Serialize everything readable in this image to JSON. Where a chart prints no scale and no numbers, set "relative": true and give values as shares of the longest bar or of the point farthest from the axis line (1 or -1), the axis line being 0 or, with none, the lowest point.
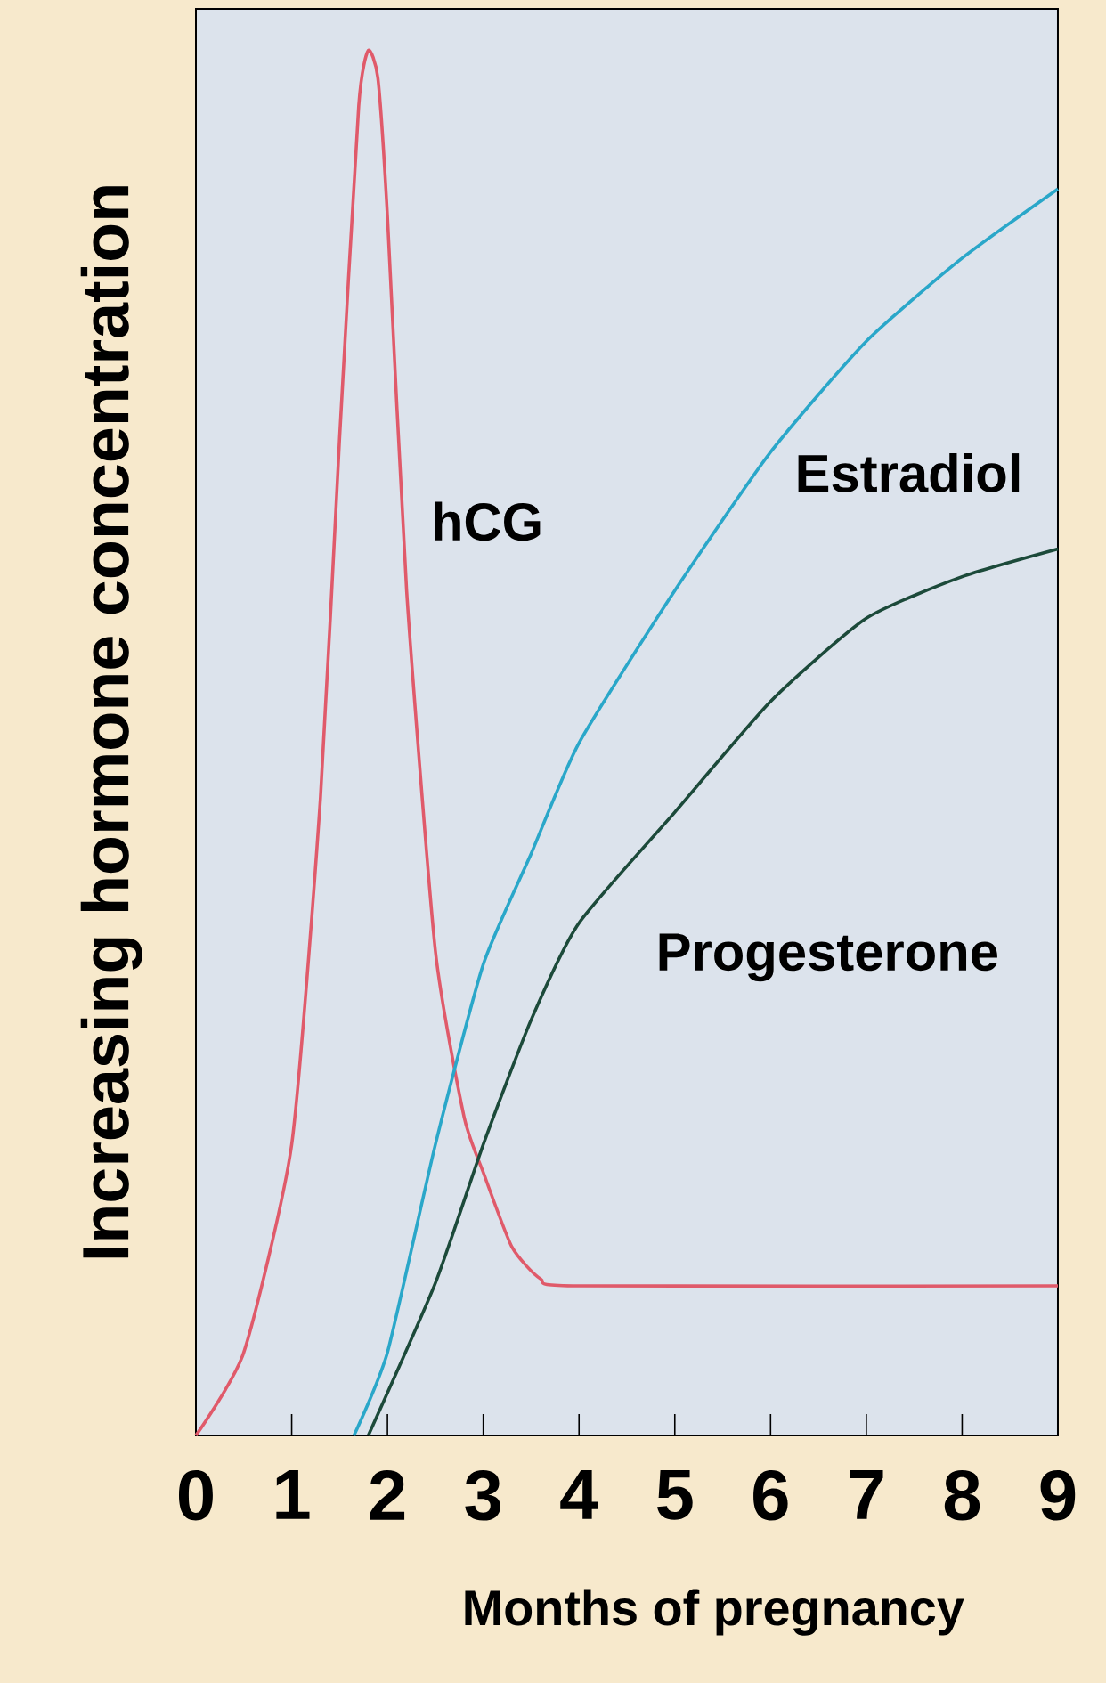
{
  "chart_data": {
    "type": "line",
    "relative": true,
    "xlabel": "Months of pregnancy",
    "ylabel": "Increasing hormone concentration",
    "xlim": [
      0,
      9
    ],
    "xticks": [
      0,
      1,
      2,
      3,
      4,
      5,
      6,
      7,
      8,
      9
    ],
    "series": [
      {
        "name": "hCG",
        "color": "#e05a6a",
        "x": [
          0,
          0.5,
          1,
          1.3,
          1.5,
          1.7,
          1.8,
          1.9,
          2,
          2.2,
          2.5,
          2.8,
          3,
          3.3,
          3.6,
          4,
          9
        ],
        "values": [
          0,
          0.06,
          0.21,
          0.46,
          0.72,
          0.96,
          1,
          0.98,
          0.88,
          0.61,
          0.35,
          0.23,
          0.19,
          0.136,
          0.113,
          0.108,
          0.108
        ]
      },
      {
        "name": "Estradiol",
        "color": "#2aa7c9",
        "x": [
          1.65,
          2,
          2.5,
          3,
          3.5,
          4,
          5,
          6,
          7,
          8,
          9
        ],
        "values": [
          0,
          0.06,
          0.21,
          0.34,
          0.42,
          0.5,
          0.61,
          0.71,
          0.79,
          0.85,
          0.9
        ]
      },
      {
        "name": "Progesterone",
        "color": "#1c4a3a",
        "x": [
          1.8,
          2.5,
          3,
          3.5,
          4,
          5,
          6,
          7,
          8,
          9
        ],
        "values": [
          0,
          0.11,
          0.21,
          0.3,
          0.37,
          0.45,
          0.53,
          0.59,
          0.62,
          0.64
        ]
      }
    ]
  }
}
